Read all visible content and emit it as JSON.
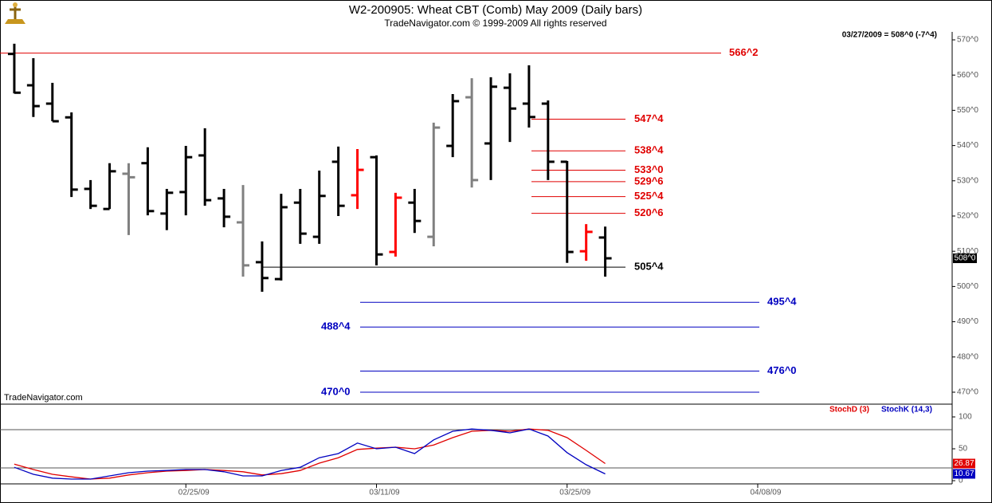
{
  "chart_data": [
    {
      "type": "ohlc",
      "title": "W2-200905:  Wheat CBT (Comb) May 2009  (Daily bars)",
      "subtitle": "TradeNavigator.com © 1999-2009 All rights reserved",
      "watermark": "TradeNavigator.com",
      "status": "03/27/2009 = 508^0 (-7^4)",
      "last_close_label": "508^0",
      "open": [
        566,
        557.1,
        551.9,
        548,
        527.7,
        522,
        532,
        535,
        520.7,
        526.8,
        537.2,
        525,
        518.2,
        506.9,
        502.1,
        523.8,
        514.1,
        535.4,
        525.9,
        536.7,
        509.8,
        523.8,
        514.1,
        539.9,
        553.7,
        540.6,
        556.4,
        551.9,
        551.9,
        535.4,
        510,
        513.9
      ],
      "high": [
        568.9,
        564.8,
        557.8,
        549.4,
        530.2,
        535,
        535,
        539.5,
        527.7,
        539.9,
        544.9,
        527.7,
        528.8,
        512.8,
        526.3,
        527.7,
        532.9,
        539.7,
        539,
        537.2,
        526.6,
        527.7,
        546.5,
        554.6,
        559.1,
        559.4,
        560.5,
        562.8,
        552.8,
        535.6,
        517.7,
        517
      ],
      "low": [
        554.8,
        548.1,
        546.9,
        525.4,
        522,
        522,
        514.6,
        520.2,
        516,
        520.2,
        522.9,
        516.8,
        502.8,
        498.5,
        501.7,
        512.1,
        512.1,
        520,
        522,
        506,
        508.5,
        515.2,
        511.4,
        536.7,
        528.1,
        530.2,
        541,
        545.1,
        530.2,
        506.7,
        507.3,
        502.8
      ],
      "close": [
        555,
        551.2,
        546.9,
        527.5,
        522.9,
        532.7,
        531,
        521.4,
        526.6,
        536.7,
        524.5,
        519.8,
        506,
        502.4,
        522.5,
        515,
        525.7,
        522.9,
        533.1,
        509.1,
        525.2,
        518.6,
        545.1,
        552.6,
        530.2,
        556.7,
        550.5,
        548.1,
        535.4,
        509.8,
        515.5,
        508
      ],
      "bar_colors": [
        "#000000",
        "#000000",
        "#000000",
        "#000000",
        "#000000",
        "#000000",
        "#808080",
        "#000000",
        "#000000",
        "#000000",
        "#000000",
        "#000000",
        "#808080",
        "#000000",
        "#000000",
        "#000000",
        "#000000",
        "#000000",
        "#ff0000",
        "#000000",
        "#ff0000",
        "#000000",
        "#808080",
        "#000000",
        "#808080",
        "#000000",
        "#000000",
        "#000000",
        "#000000",
        "#000000",
        "#ff0000",
        "#000000"
      ],
      "levels": [
        {
          "value": 566.25,
          "label": "566^2",
          "color": "#e00000"
        },
        {
          "value": 547.5,
          "label": "547^4",
          "color": "#e00000"
        },
        {
          "value": 538.5,
          "label": "538^4",
          "color": "#e00000"
        },
        {
          "value": 533,
          "label": "533^0",
          "color": "#e00000"
        },
        {
          "value": 529.75,
          "label": "529^6",
          "color": "#e00000"
        },
        {
          "value": 525.5,
          "label": "525^4",
          "color": "#e00000"
        },
        {
          "value": 520.75,
          "label": "520^6",
          "color": "#e00000"
        },
        {
          "value": 505.5,
          "label": "505^4",
          "color": "#000000"
        },
        {
          "value": 495.5,
          "label": "495^4",
          "color": "#0000c0"
        },
        {
          "value": 488.5,
          "label": "488^4",
          "color": "#0000c0"
        },
        {
          "value": 476,
          "label": "476^0",
          "color": "#0000c0"
        },
        {
          "value": 470,
          "label": "470^0",
          "color": "#0000c0"
        }
      ],
      "xlim": [
        -0.75,
        49.2
      ],
      "xticks": [
        {
          "value": 9,
          "label": "02/25/09"
        },
        {
          "value": 19,
          "label": "03/11/09"
        },
        {
          "value": 29,
          "label": "03/25/09"
        },
        {
          "value": 39,
          "label": "04/08/09"
        }
      ],
      "ylim": [
        467.06,
        572.26
      ],
      "yticks": [
        {
          "value": 570,
          "label": "570^0"
        },
        {
          "value": 560,
          "label": "560^0"
        },
        {
          "value": 550,
          "label": "550^0"
        },
        {
          "value": 540,
          "label": "540^0"
        },
        {
          "value": 530,
          "label": "530^0"
        },
        {
          "value": 520,
          "label": "520^0"
        },
        {
          "value": 510,
          "label": "510^0"
        },
        {
          "value": 500,
          "label": "500^0"
        },
        {
          "value": 490,
          "label": "490^0"
        },
        {
          "value": 480,
          "label": "480^0"
        },
        {
          "value": 470,
          "label": "470^0"
        }
      ]
    },
    {
      "type": "line",
      "series": [
        {
          "name": "StochD (3)",
          "color": "#e00000",
          "values": [
            26,
            17.5,
            10,
            6,
            2.5,
            4,
            9,
            12.5,
            15,
            16,
            17.5,
            16,
            14,
            9,
            11,
            16,
            27.5,
            36,
            49,
            51,
            52.5,
            50,
            56,
            67.5,
            77.5,
            79,
            77.5,
            81,
            79,
            67.5,
            47.5,
            26.87
          ]
        },
        {
          "name": "StochK (14,3)",
          "color": "#0000c0",
          "values": [
            21,
            10,
            4,
            2.5,
            2.5,
            7.5,
            12.5,
            15,
            16,
            17.5,
            17.5,
            14,
            7.5,
            7.5,
            16,
            21,
            36,
            42.5,
            59,
            50,
            52.5,
            42.5,
            64,
            77.5,
            81,
            79,
            75,
            81,
            70,
            44,
            25,
            10.67
          ]
        }
      ],
      "ref_lines": [
        80,
        20
      ],
      "ylim": [
        -3.75,
        116.25
      ],
      "yticks": [
        100,
        50,
        0
      ]
    }
  ]
}
